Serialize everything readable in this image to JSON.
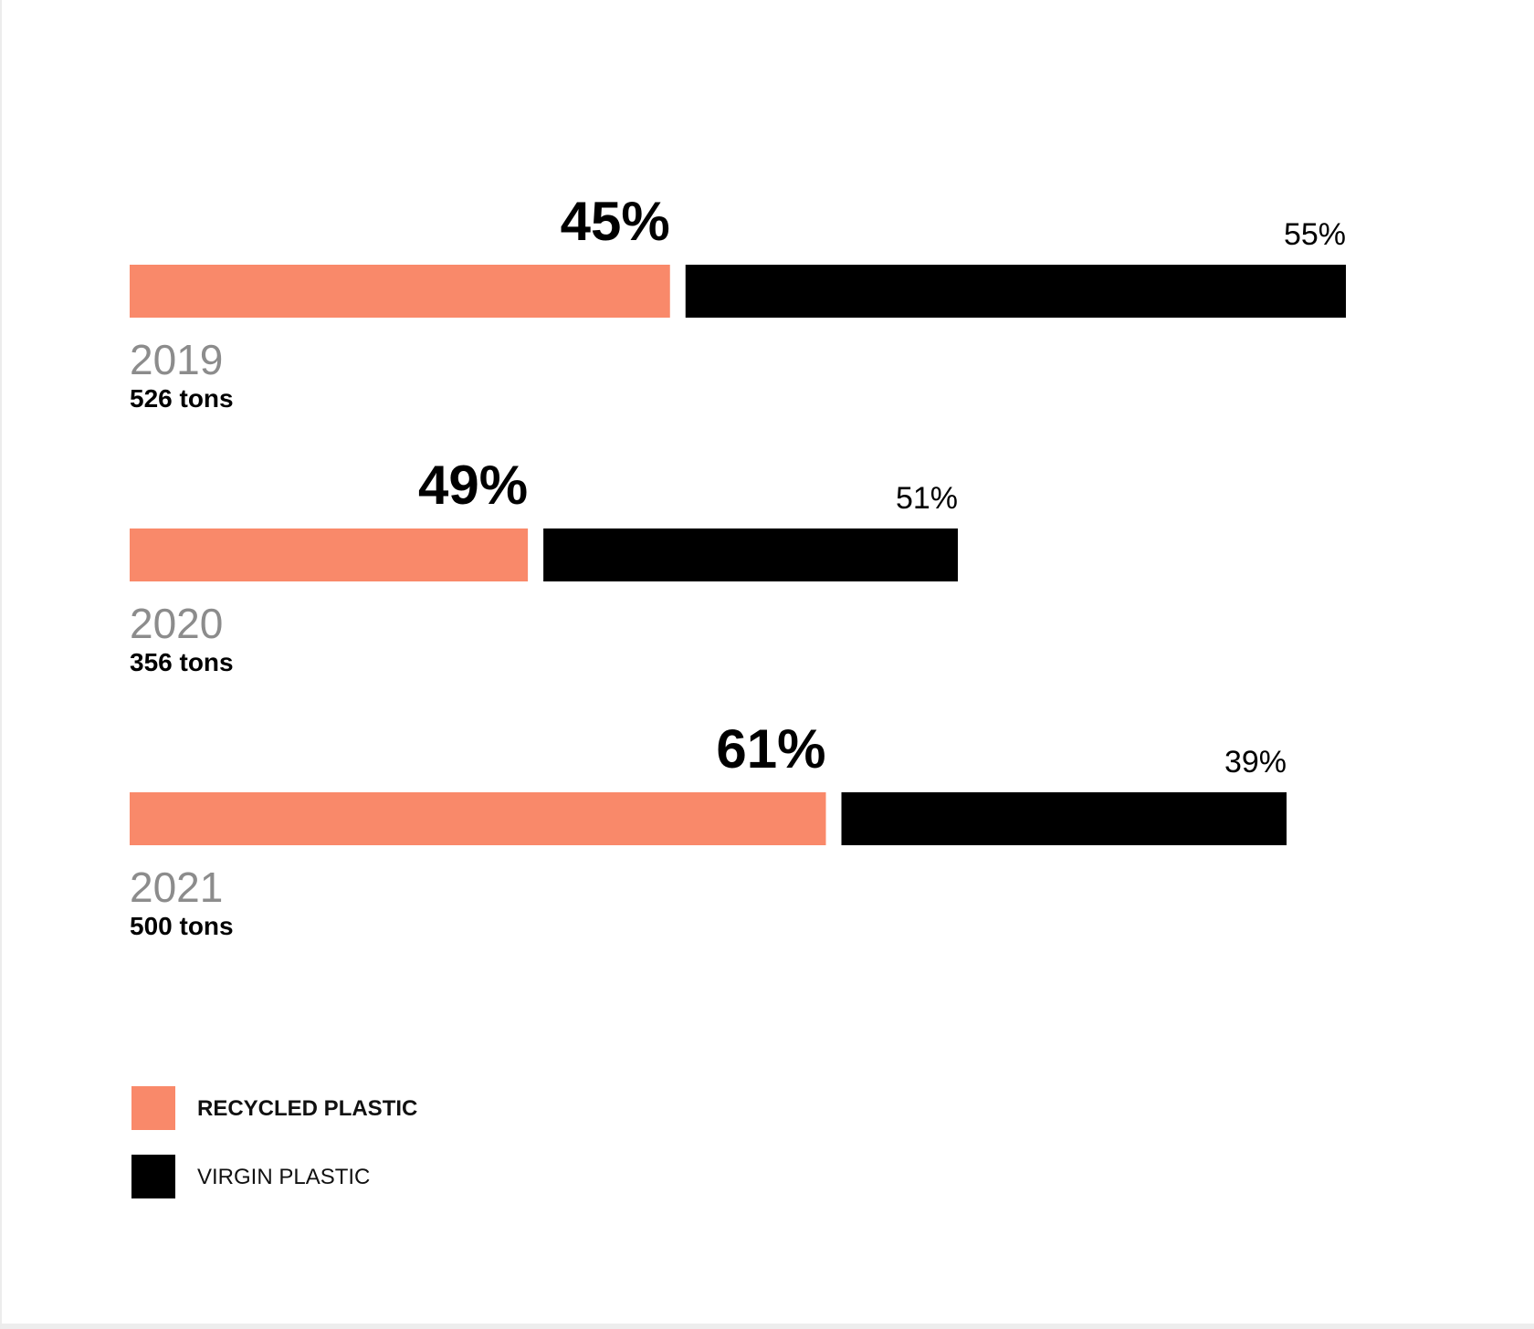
{
  "chart_data": {
    "type": "bar",
    "orientation": "horizontal",
    "stacked": true,
    "categories": [
      "2019",
      "2020",
      "2021"
    ],
    "totals": [
      "526 tons",
      "356 tons",
      "500 tons"
    ],
    "total_tons": [
      526,
      356,
      500
    ],
    "series": [
      {
        "name": "RECYCLED PLASTIC",
        "values": [
          45,
          49,
          61
        ],
        "labels": [
          "45%",
          "49%",
          "61%"
        ],
        "color": "#f9896a"
      },
      {
        "name": "VIRGIN PLASTIC",
        "values": [
          55,
          51,
          39
        ],
        "labels": [
          "55%",
          "51%",
          "39%"
        ],
        "color": "#000000"
      }
    ],
    "legend_position": "bottom-left",
    "grid": false,
    "title": "",
    "xlabel": "",
    "ylabel": ""
  },
  "colors": {
    "recycled": "#f9896a",
    "virgin": "#000000",
    "year_text": "#8c8c8c",
    "tons_text": "#000000"
  },
  "legend": {
    "recycled_label": "RECYCLED PLASTIC",
    "virgin_label": "VIRGIN PLASTIC"
  }
}
